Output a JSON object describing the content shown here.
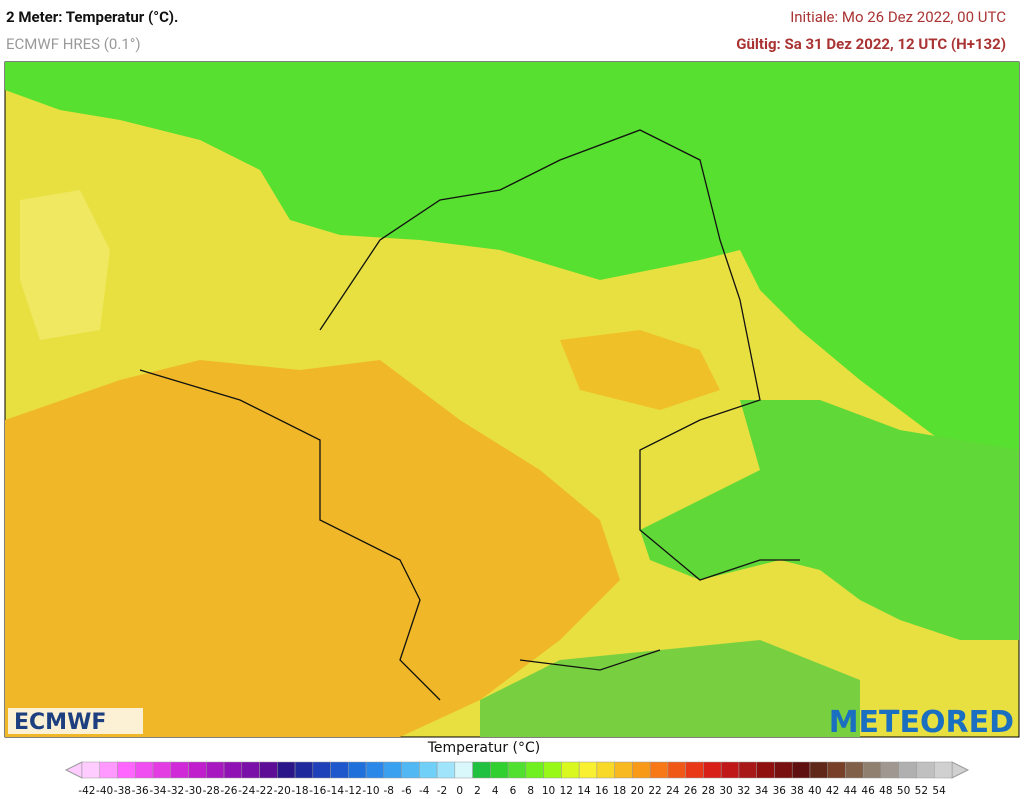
{
  "header": {
    "title": "2 Meter: Temperatur (°C).",
    "model": "ECMWF HRES (0.1°)",
    "init": "Initiale: Mo 26 Dez 2022, 00 UTC",
    "valid": "Gültig: Sa 31 Dez 2022, 12 UTC (H+132)"
  },
  "logos": {
    "left": "ECMWF",
    "right": "METEORED"
  },
  "legend": {
    "title": "Temperatur (°C)",
    "ticks": [
      -42,
      -40,
      -38,
      -36,
      -34,
      -32,
      -30,
      -28,
      -26,
      -24,
      -22,
      -20,
      -18,
      -16,
      -14,
      -12,
      -10,
      -8,
      -6,
      -4,
      -2,
      0,
      2,
      4,
      6,
      8,
      10,
      12,
      14,
      16,
      18,
      20,
      22,
      24,
      26,
      28,
      30,
      32,
      34,
      36,
      38,
      40,
      42,
      44,
      46,
      48,
      50,
      52,
      54
    ],
    "colors": [
      "#ffccff",
      "#ff99ff",
      "#ff66ff",
      "#f04ef0",
      "#e23ce2",
      "#d02ad8",
      "#c01ecc",
      "#a818c0",
      "#9012b4",
      "#7a10a8",
      "#5e0e96",
      "#2a1688",
      "#1e2a9c",
      "#1e40b8",
      "#1e58cc",
      "#2070dc",
      "#2c88e8",
      "#3aa0f0",
      "#52b8f4",
      "#70d0f8",
      "#a0e4fc",
      "#d8f8fc",
      "#20c040",
      "#30d030",
      "#50e030",
      "#70f020",
      "#98f818",
      "#d8f820",
      "#f8f030",
      "#f8d828",
      "#f8b820",
      "#f89a18",
      "#f87818",
      "#f05818",
      "#e83818",
      "#d82018",
      "#c01818",
      "#a81818",
      "#901010",
      "#781010",
      "#601010",
      "#602818",
      "#784028",
      "#806048",
      "#908070",
      "#a09890",
      "#b0b0b0",
      "#c0c0c0",
      "#d0d0d0"
    ]
  }
}
